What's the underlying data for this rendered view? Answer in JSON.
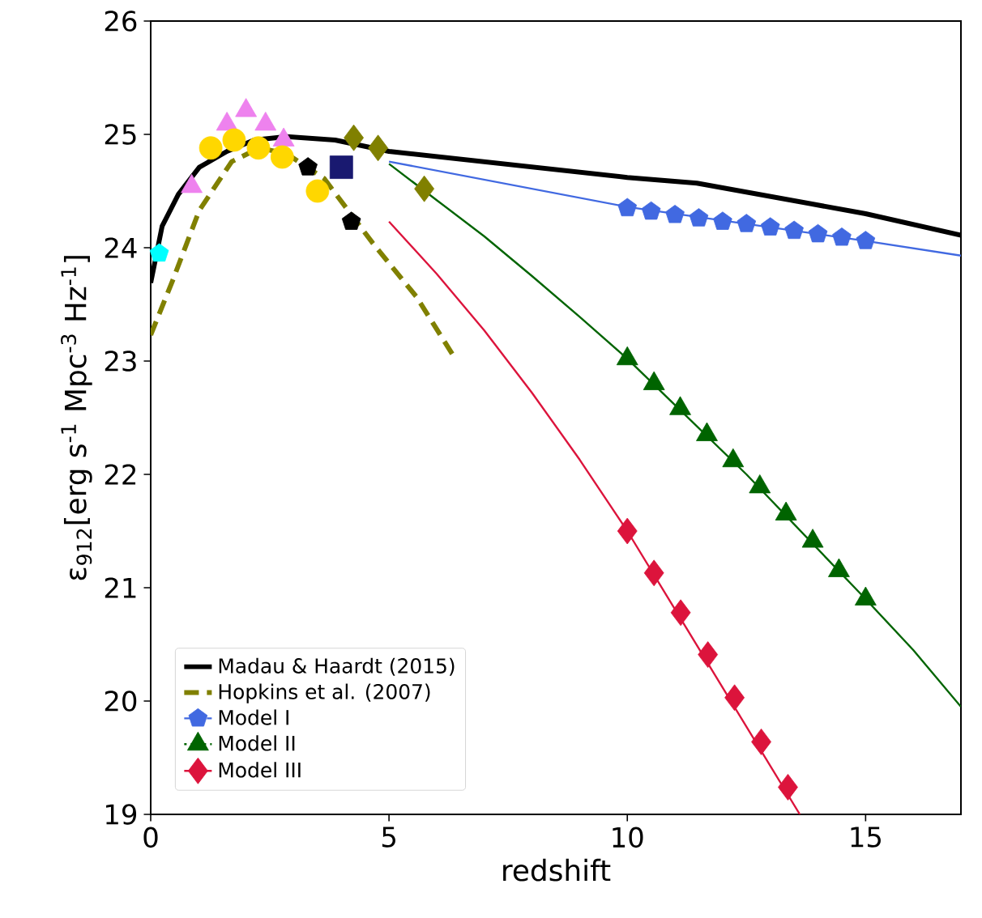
{
  "chart_data": {
    "type": "line",
    "xlabel": "redshift",
    "ylabel": "ε$_{912}$[erg s$^{-1}$ Mpc$^{-3}$ Hz$^{-1}$]",
    "xlim": [
      0,
      17
    ],
    "ylim": [
      19,
      26
    ],
    "xticks": [
      0,
      5,
      10,
      15
    ],
    "yticks": [
      19,
      20,
      21,
      22,
      23,
      24,
      25,
      26
    ],
    "legend": "bottom left",
    "grid": false,
    "series": [
      {
        "name": "Madau & Haardt (2015)",
        "color": "#000000",
        "marker": "none",
        "line_style": "solid",
        "x": [
          0,
          0.24,
          0.58,
          1.02,
          1.6,
          2.17,
          2.85,
          3.87,
          5,
          10,
          11.46,
          15,
          17
        ],
        "values": [
          23.69,
          24.19,
          24.47,
          24.71,
          24.85,
          24.95,
          24.98,
          24.95,
          24.85,
          24.62,
          24.57,
          24.3,
          24.11
        ]
      },
      {
        "name": "Hopkins et al. (2007)",
        "color": "#808000",
        "marker": "none",
        "line_style": "dashed",
        "x": [
          0,
          0.46,
          1.02,
          1.7,
          2.28,
          2.85,
          3.64,
          4.66,
          5.57,
          6.36
        ],
        "values": [
          23.23,
          23.71,
          24.33,
          24.76,
          24.88,
          24.83,
          24.61,
          24.04,
          23.57,
          23.04
        ]
      },
      {
        "name": "Model I",
        "type": "scatter",
        "color": "#4169e1",
        "line_style": "dashed",
        "x": [
          10,
          10.5,
          11,
          11.5,
          12,
          12.5,
          13,
          13.5,
          14,
          14.5,
          15
        ],
        "values": [
          24.35,
          24.32,
          24.29,
          24.26,
          24.23,
          24.21,
          24.18,
          24.15,
          24.12,
          24.09,
          24.06
        ]
      },
      {
        "name": "Model II",
        "type": "scatter",
        "color": "#006400",
        "marker": "triangle",
        "line_style": "dotted",
        "x": [
          10,
          10.56,
          11.11,
          11.67,
          12.22,
          12.78,
          13.33,
          13.89,
          14.44,
          15
        ],
        "values": [
          23.02,
          22.8,
          22.58,
          22.35,
          22.12,
          21.89,
          21.65,
          21.41,
          21.15,
          20.9
        ]
      },
      {
        "name": "Model III",
        "type": "scatter",
        "color": "#dc143c",
        "marker": "diamond",
        "line_style": "solid",
        "x": [
          10,
          10.56,
          11.12,
          11.69,
          12.25,
          12.81,
          13.37
        ],
        "values": [
          21.5,
          21.13,
          20.78,
          20.41,
          20.03,
          19.64,
          19.24
        ]
      },
      {
        "color": "#4169e1",
        "marker": "none",
        "line_style": "solid",
        "x": [
          5,
          10,
          15,
          17
        ],
        "values": [
          24.76,
          24.36,
          24.06,
          23.93
        ]
      },
      {
        "color": "#006400",
        "marker": "none",
        "line_style": "solid",
        "x": [
          5,
          6,
          7,
          8,
          9,
          10,
          12.5,
          15,
          16,
          17
        ],
        "values": [
          24.74,
          24.42,
          24.1,
          23.75,
          23.39,
          23.02,
          22.0,
          20.9,
          20.45,
          19.95
        ]
      },
      {
        "color": "#dc143c",
        "marker": "none",
        "line_style": "solid",
        "x": [
          5,
          6,
          7,
          8,
          9,
          10,
          13.62
        ],
        "values": [
          24.23,
          23.77,
          23.27,
          22.72,
          22.13,
          21.5,
          19.0
        ]
      },
      {
        "type": "scatter",
        "color": "#00ffff",
        "x": [
          0.18
        ],
        "values": [
          23.95
        ]
      },
      {
        "type": "scatter",
        "color": "#ee82ee",
        "marker": "triangle",
        "x": [
          0.86,
          1.6,
          2.0,
          2.41,
          2.79
        ],
        "values": [
          24.54,
          25.09,
          25.21,
          25.09,
          24.95
        ]
      },
      {
        "type": "scatter",
        "color": "#ffd700",
        "marker": "circle",
        "x": [
          1.26,
          1.75,
          2.26,
          2.76,
          3.5
        ],
        "values": [
          24.88,
          24.95,
          24.88,
          24.8,
          24.5
        ]
      },
      {
        "type": "scatter",
        "color": "#000000",
        "x": [
          3.3,
          4.21
        ],
        "values": [
          24.71,
          24.23
        ]
      },
      {
        "type": "scatter",
        "color": "#191970",
        "marker": "square",
        "x": [
          4.0
        ],
        "values": [
          24.71
        ]
      },
      {
        "type": "scatter",
        "color": "#808000",
        "marker": "diamond",
        "x": [
          4.26,
          4.77,
          5.74
        ],
        "values": [
          24.97,
          24.88,
          24.52
        ]
      }
    ]
  }
}
